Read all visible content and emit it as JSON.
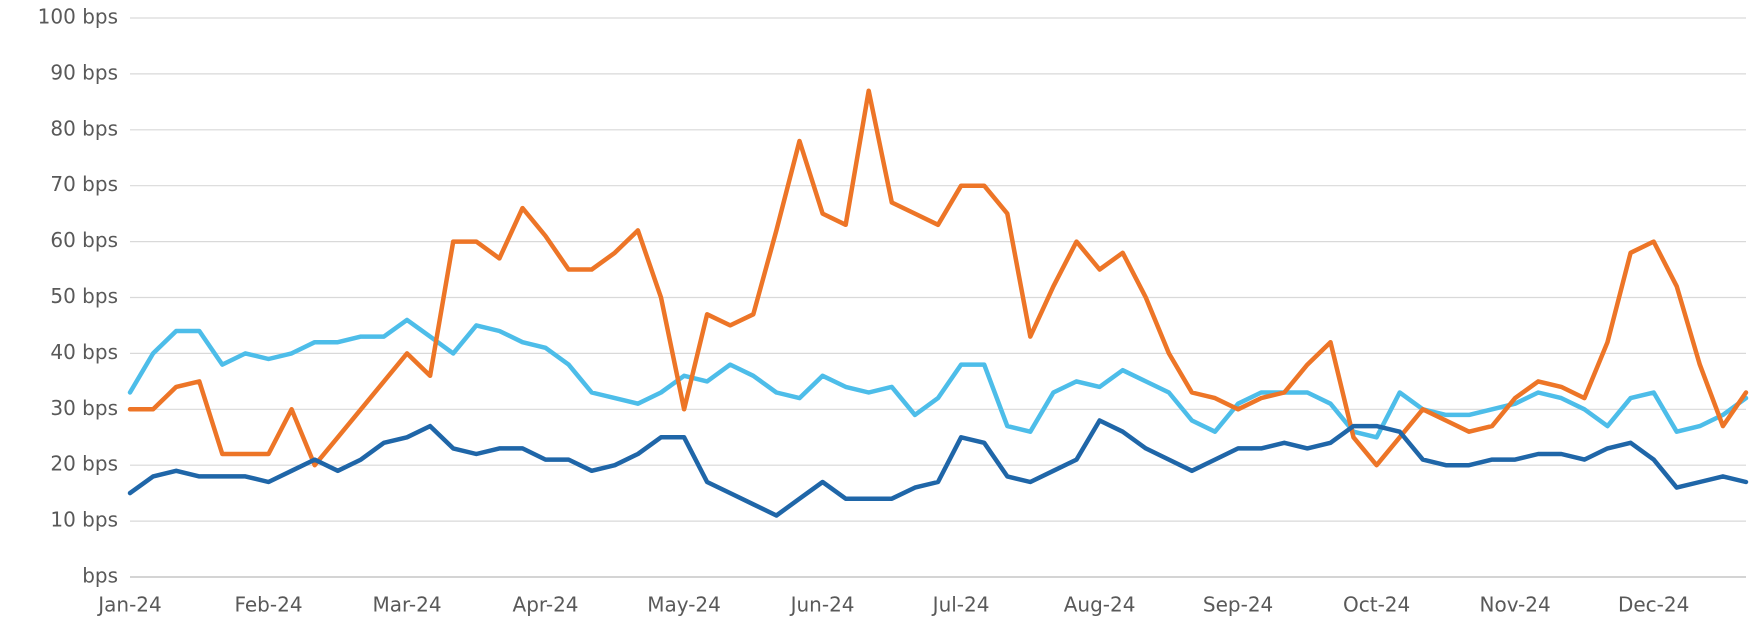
{
  "chart_data": {
    "type": "line",
    "categories": [
      "Jan-24",
      null,
      null,
      null,
      null,
      null,
      "Feb-24",
      null,
      null,
      null,
      null,
      null,
      "Mar-24",
      null,
      null,
      null,
      null,
      null,
      "Apr-24",
      null,
      null,
      null,
      null,
      null,
      "May-24",
      null,
      null,
      null,
      null,
      null,
      "Jun-24",
      null,
      null,
      null,
      null,
      null,
      "Jul-24",
      null,
      null,
      null,
      null,
      null,
      "Aug-24",
      null,
      null,
      null,
      null,
      null,
      "Sep-24",
      null,
      null,
      null,
      null,
      null,
      "Oct-24",
      null,
      null,
      null,
      null,
      null,
      "Nov-24",
      null,
      null,
      null,
      null,
      null,
      "Dec-24",
      null,
      null,
      null,
      null
    ],
    "series": [
      {
        "color": "#4dbde9",
        "values": [
          33,
          40,
          44,
          44,
          38,
          40,
          39,
          40,
          42,
          42,
          43,
          43,
          46,
          43,
          40,
          45,
          44,
          42,
          41,
          38,
          33,
          32,
          31,
          33,
          36,
          35,
          38,
          36,
          33,
          32,
          36,
          34,
          33,
          34,
          29,
          32,
          38,
          38,
          27,
          26,
          33,
          35,
          34,
          37,
          35,
          33,
          28,
          26,
          31,
          33,
          33,
          33,
          31,
          26,
          25,
          33,
          30,
          29,
          29,
          30,
          31,
          33,
          32,
          30,
          27,
          32,
          33,
          26,
          27,
          29,
          32
        ]
      },
      {
        "color": "#ed7527",
        "values": [
          30,
          30,
          34,
          35,
          22,
          22,
          22,
          30,
          20,
          25,
          30,
          35,
          40,
          36,
          60,
          60,
          57,
          66,
          61,
          55,
          55,
          58,
          62,
          50,
          30,
          47,
          45,
          47,
          62,
          78,
          65,
          63,
          87,
          67,
          65,
          63,
          70,
          70,
          65,
          43,
          52,
          60,
          55,
          58,
          50,
          40,
          33,
          32,
          30,
          32,
          33,
          38,
          42,
          25,
          20,
          25,
          30,
          28,
          26,
          27,
          32,
          35,
          34,
          32,
          42,
          58,
          60,
          52,
          38,
          27,
          33
        ]
      },
      {
        "color": "#1f66a8",
        "values": [
          15,
          18,
          19,
          18,
          18,
          18,
          17,
          19,
          21,
          19,
          21,
          24,
          25,
          27,
          23,
          22,
          23,
          23,
          21,
          21,
          19,
          20,
          22,
          25,
          25,
          17,
          15,
          13,
          11,
          14,
          17,
          14,
          14,
          14,
          16,
          17,
          25,
          24,
          18,
          17,
          19,
          21,
          28,
          26,
          23,
          21,
          19,
          21,
          23,
          23,
          24,
          23,
          24,
          27,
          27,
          26,
          21,
          20,
          20,
          21,
          21,
          22,
          22,
          21,
          23,
          24,
          21,
          16,
          17,
          18,
          17
        ]
      }
    ],
    "ylim": [
      0,
      100
    ],
    "yticks": [
      {
        "value": 0,
        "label": "bps"
      },
      {
        "value": 10,
        "label": "10 bps"
      },
      {
        "value": 20,
        "label": "20 bps"
      },
      {
        "value": 30,
        "label": "30 bps"
      },
      {
        "value": 40,
        "label": "40 bps"
      },
      {
        "value": 50,
        "label": "50 bps"
      },
      {
        "value": 60,
        "label": "60 bps"
      },
      {
        "value": 70,
        "label": "70 bps"
      },
      {
        "value": 80,
        "label": "80 bps"
      },
      {
        "value": 90,
        "label": "90 bps"
      },
      {
        "value": 100,
        "label": "100 bps"
      }
    ],
    "grid": true
  }
}
